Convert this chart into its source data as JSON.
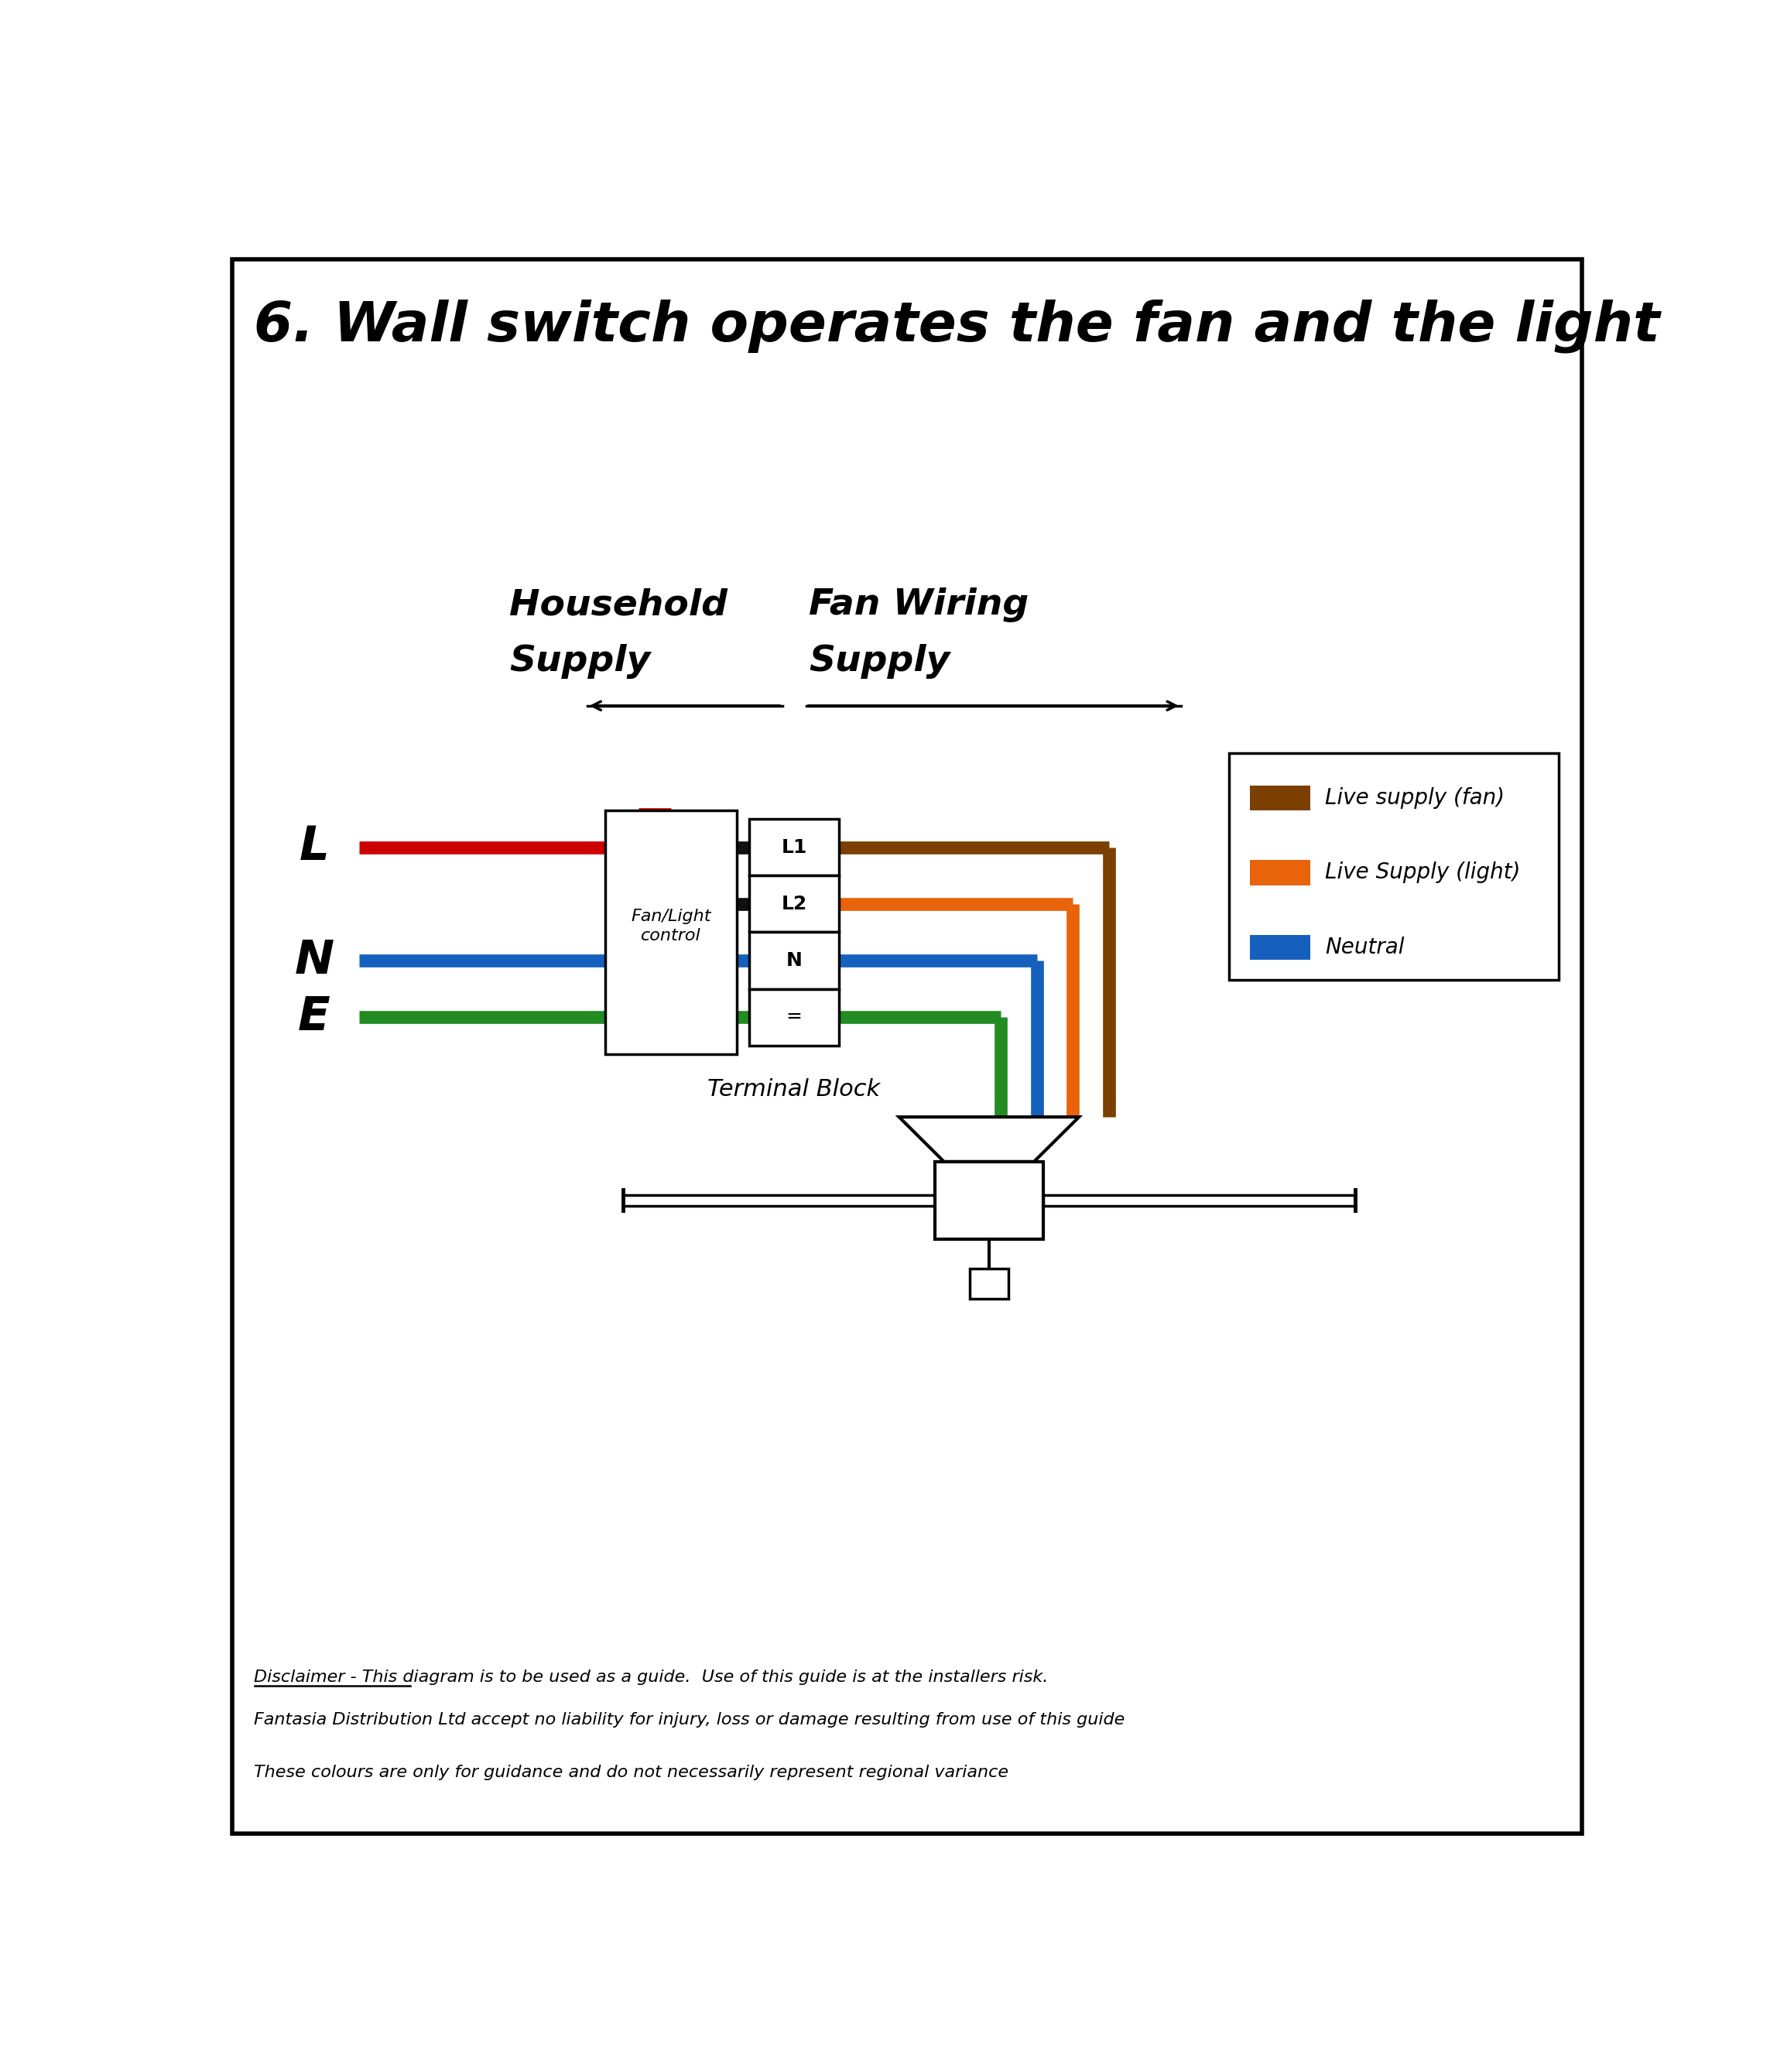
{
  "title": "6. Wall switch operates the fan and the light",
  "bg_color": "#ffffff",
  "border_color": "#000000",
  "legend_items": [
    {
      "color": "#7B3F00",
      "label": "Live supply (fan)"
    },
    {
      "color": "#E8630A",
      "label": "Live Supply (light)"
    },
    {
      "color": "#1560BD",
      "label": "Neutral"
    }
  ],
  "disclaimer1": "Disclaimer - This diagram is to be used as a guide.  Use of this guide is at the installers risk.",
  "disclaimer2": "Fantasia Distribution Ltd accept no liability for injury, loss or damage resulting from use of this guide",
  "disclaimer3": "These colours are only for guidance and do not necessarily represent regional variance",
  "wire_colors": {
    "black": "#111111",
    "brown": "#7B3F00",
    "orange": "#E8630A",
    "blue": "#1560BD",
    "green": "#228B22",
    "red": "#CC0000"
  }
}
